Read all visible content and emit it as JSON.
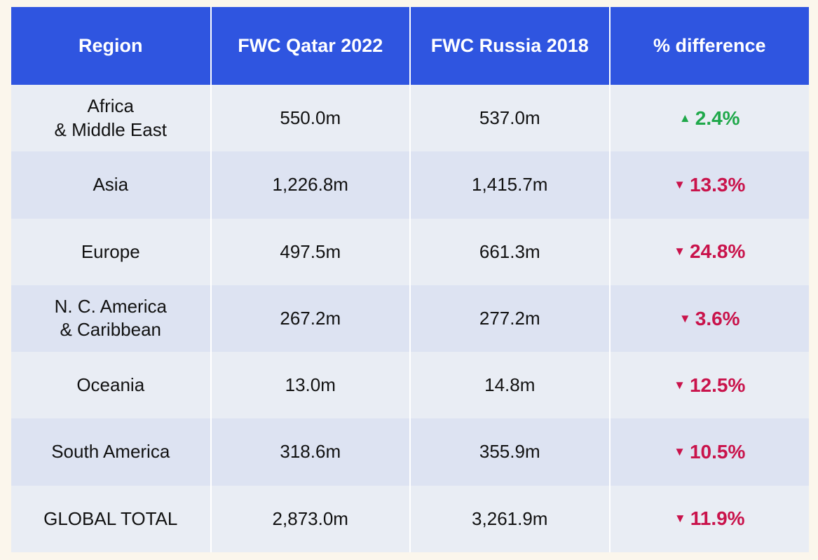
{
  "chart_data": {
    "type": "table",
    "columns": [
      "Region",
      "FWC Qatar 2022",
      "FWC Russia 2018",
      "% difference"
    ],
    "rows": [
      {
        "region": [
          "Africa",
          "& Middle East"
        ],
        "qatar_2022": "550.0m",
        "russia_2018": "537.0m",
        "direction": "up",
        "diff": "2.4%"
      },
      {
        "region": [
          "Asia"
        ],
        "qatar_2022": "1,226.8m",
        "russia_2018": "1,415.7m",
        "direction": "down",
        "diff": "13.3%"
      },
      {
        "region": [
          "Europe"
        ],
        "qatar_2022": "497.5m",
        "russia_2018": "661.3m",
        "direction": "down",
        "diff": "24.8%"
      },
      {
        "region": [
          "N. C. America",
          "& Caribbean"
        ],
        "qatar_2022": "267.2m",
        "russia_2018": "277.2m",
        "direction": "down",
        "diff": "3.6%"
      },
      {
        "region": [
          "Oceania"
        ],
        "qatar_2022": "13.0m",
        "russia_2018": "14.8m",
        "direction": "down",
        "diff": "12.5%"
      },
      {
        "region": [
          "South America"
        ],
        "qatar_2022": "318.6m",
        "russia_2018": "355.9m",
        "direction": "down",
        "diff": "10.5%"
      },
      {
        "region": [
          "GLOBAL TOTAL"
        ],
        "qatar_2022": "2,873.0m",
        "russia_2018": "3,261.9m",
        "direction": "down",
        "diff": "11.9%"
      }
    ]
  },
  "arrows": {
    "up": "▲",
    "down": "▼"
  },
  "colors": {
    "header_bg": "#2f55e0",
    "header_text": "#ffffff",
    "row_light": "#e9edf4",
    "row_dark": "#dde3f2",
    "page_bg": "#fbf6ec",
    "increase": "#1fa84a",
    "decrease": "#c9134b"
  }
}
